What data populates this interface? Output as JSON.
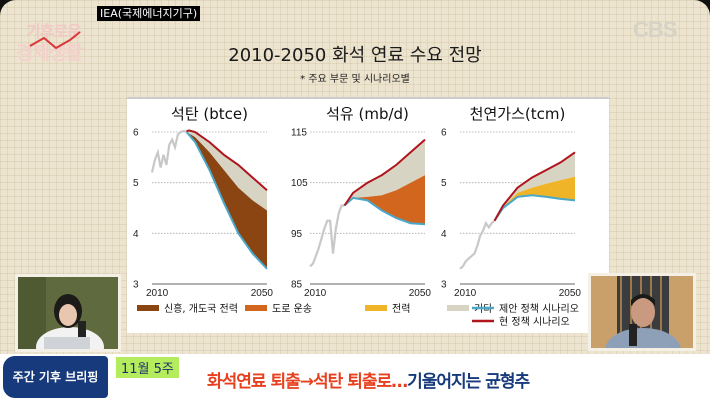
{
  "source_tag": "IEA(국제에너지기구)",
  "program_logo": {
    "line1": "기후로운",
    "line2": "경제생활"
  },
  "broadcaster": "CBS",
  "main_title": "2010-2050 화석 연료 수요 전망",
  "main_subtitle": "* 주요 부문 및 시나리오별",
  "bottom": {
    "program": "주간 기후 브리핑",
    "week": "11월 5주",
    "headline_red": "화석연료 퇴출→석탄 퇴출로…",
    "headline_blue": "기울어지는 균형추"
  },
  "colors": {
    "history": "#c8c8c8",
    "emerging_power": "#8b4513",
    "road_transport": "#d2661f",
    "power": "#f0b428",
    "other": "#d8d4c4",
    "announced_policy": "#4aa8c8",
    "current_policy": "#b0141c"
  },
  "chart_data": [
    {
      "type": "area",
      "title": "석탄 (btce)",
      "ylim": [
        3,
        6
      ],
      "yticks": [
        "3",
        "4",
        "5",
        "6"
      ],
      "xticks": [
        "2010",
        "2050"
      ],
      "xlim": [
        2010,
        2050
      ],
      "grid": true,
      "history": {
        "x": [
          2010,
          2011,
          2012,
          2013,
          2014,
          2015,
          2016,
          2017,
          2018,
          2019,
          2020,
          2021,
          2022
        ],
        "y": [
          5.2,
          5.45,
          5.6,
          5.3,
          5.55,
          5.35,
          5.75,
          5.85,
          5.7,
          5.95,
          6.0,
          6.02,
          6.0
        ]
      },
      "current_policy": {
        "x": [
          2022,
          2023,
          2025,
          2030,
          2035,
          2040,
          2045,
          2050
        ],
        "y": [
          6.02,
          6.03,
          6.0,
          5.8,
          5.55,
          5.35,
          5.1,
          4.85
        ]
      },
      "announced_policy": {
        "x": [
          2022,
          2025,
          2030,
          2035,
          2040,
          2045,
          2050
        ],
        "y": [
          6.0,
          5.8,
          5.25,
          4.6,
          4.0,
          3.6,
          3.3
        ]
      },
      "stack_tops": {
        "x": [
          2022,
          2025,
          2030,
          2035,
          2040,
          2045,
          2050
        ],
        "emerging_power": [
          6.0,
          5.9,
          5.6,
          5.25,
          4.9,
          4.65,
          4.45
        ]
      }
    },
    {
      "type": "area",
      "title": "석유 (mb/d)",
      "ylim": [
        85,
        115
      ],
      "yticks": [
        "85",
        "95",
        "105",
        "115"
      ],
      "xticks": [
        "2010",
        "2050"
      ],
      "xlim": [
        2010,
        2050
      ],
      "grid": true,
      "history": {
        "x": [
          2010,
          2011,
          2012,
          2013,
          2014,
          2015,
          2016,
          2017,
          2018,
          2019,
          2020,
          2021,
          2022
        ],
        "y": [
          88.5,
          89,
          90.5,
          92,
          94,
          96,
          97.5,
          97.5,
          91,
          96,
          99,
          100.5,
          100.5
        ]
      },
      "current_policy": {
        "x": [
          2022,
          2025,
          2030,
          2035,
          2040,
          2045,
          2050
        ],
        "y": [
          100.5,
          103,
          105,
          106.5,
          108.5,
          111,
          113.5
        ]
      },
      "announced_policy": {
        "x": [
          2022,
          2025,
          2030,
          2035,
          2040,
          2045,
          2050
        ],
        "y": [
          100.5,
          102,
          101.5,
          99.5,
          98,
          97,
          96.8
        ]
      },
      "stack_tops": {
        "x": [
          2022,
          2025,
          2030,
          2035,
          2040,
          2045,
          2050
        ],
        "road_transport": [
          100.5,
          102,
          102.2,
          102.5,
          103.5,
          105,
          106.5
        ]
      }
    },
    {
      "type": "area",
      "title": "천연가스(tcm)",
      "ylim": [
        3,
        6
      ],
      "yticks": [
        "3",
        "4",
        "5",
        "6"
      ],
      "xticks": [
        "2010",
        "2050"
      ],
      "xlim": [
        2010,
        2050
      ],
      "grid": true,
      "history": {
        "x": [
          2010,
          2011,
          2012,
          2013,
          2014,
          2015,
          2016,
          2017,
          2018,
          2019,
          2020,
          2021,
          2022
        ],
        "y": [
          3.3,
          3.35,
          3.45,
          3.5,
          3.55,
          3.6,
          3.75,
          3.95,
          4.05,
          4.2,
          4.12,
          4.2,
          4.25
        ]
      },
      "current_policy": {
        "x": [
          2022,
          2025,
          2030,
          2035,
          2040,
          2045,
          2050
        ],
        "y": [
          4.25,
          4.55,
          4.9,
          5.1,
          5.25,
          5.4,
          5.6
        ]
      },
      "announced_policy": {
        "x": [
          2022,
          2025,
          2030,
          2035,
          2040,
          2045,
          2050
        ],
        "y": [
          4.25,
          4.5,
          4.72,
          4.75,
          4.72,
          4.68,
          4.65
        ]
      },
      "stack_tops": {
        "x": [
          2022,
          2025,
          2030,
          2035,
          2040,
          2045,
          2050
        ],
        "power": [
          4.25,
          4.52,
          4.8,
          4.9,
          4.98,
          5.05,
          5.12
        ]
      }
    }
  ],
  "legend": [
    {
      "label": "신흥, 개도국 전력",
      "key": "emerging_power",
      "kind": "box"
    },
    {
      "label": "도로 운송",
      "key": "road_transport",
      "kind": "box"
    },
    {
      "label": "전력",
      "key": "power",
      "kind": "box"
    },
    {
      "label": "기타",
      "key": "other",
      "kind": "box"
    },
    {
      "label": "제안 정책 시나리오",
      "key": "announced_policy",
      "kind": "line"
    },
    {
      "label": "현 정책 시나리오",
      "key": "current_policy",
      "kind": "line"
    }
  ]
}
